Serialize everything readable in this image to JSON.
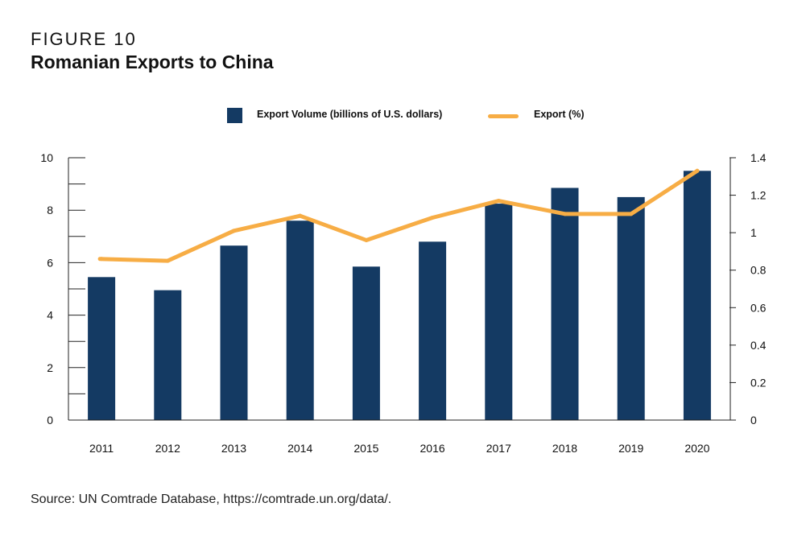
{
  "figure_label": "FIGURE 10",
  "title": "Romanian Exports to China",
  "legend": {
    "bar_label": "Export Volume (billions of U.S. dollars)",
    "line_label": "Export (%)"
  },
  "source": "Source: UN Comtrade Database, https://comtrade.un.org/data/.",
  "colors": {
    "bar": "#143a63",
    "line": "#f7ad45",
    "axis": "#222222"
  },
  "chart_data": {
    "type": "bar",
    "categories": [
      "2011",
      "2012",
      "2013",
      "2014",
      "2015",
      "2016",
      "2017",
      "2018",
      "2019",
      "2020"
    ],
    "series": [
      {
        "name": "Export Volume (billions of U.S. dollars)",
        "type": "bar",
        "axis": "left",
        "values": [
          5.45,
          4.95,
          6.65,
          7.6,
          5.85,
          6.8,
          8.25,
          8.85,
          8.5,
          9.5
        ]
      },
      {
        "name": "Export (%)",
        "type": "line",
        "axis": "right",
        "values": [
          0.86,
          0.85,
          1.01,
          1.09,
          0.96,
          1.08,
          1.17,
          1.1,
          1.1,
          1.33
        ]
      }
    ],
    "y_left": {
      "ylim": [
        0,
        10
      ],
      "ticks": [
        "0",
        "2",
        "4",
        "6",
        "8",
        "10"
      ],
      "minor_step": 1
    },
    "y_right": {
      "ylim": [
        0,
        1.4
      ],
      "ticks": [
        "0",
        "0.2",
        "0.4",
        "0.6",
        "0.8",
        "1",
        "1.2",
        "1.4"
      ]
    },
    "grid": false,
    "legend_position": "top"
  }
}
